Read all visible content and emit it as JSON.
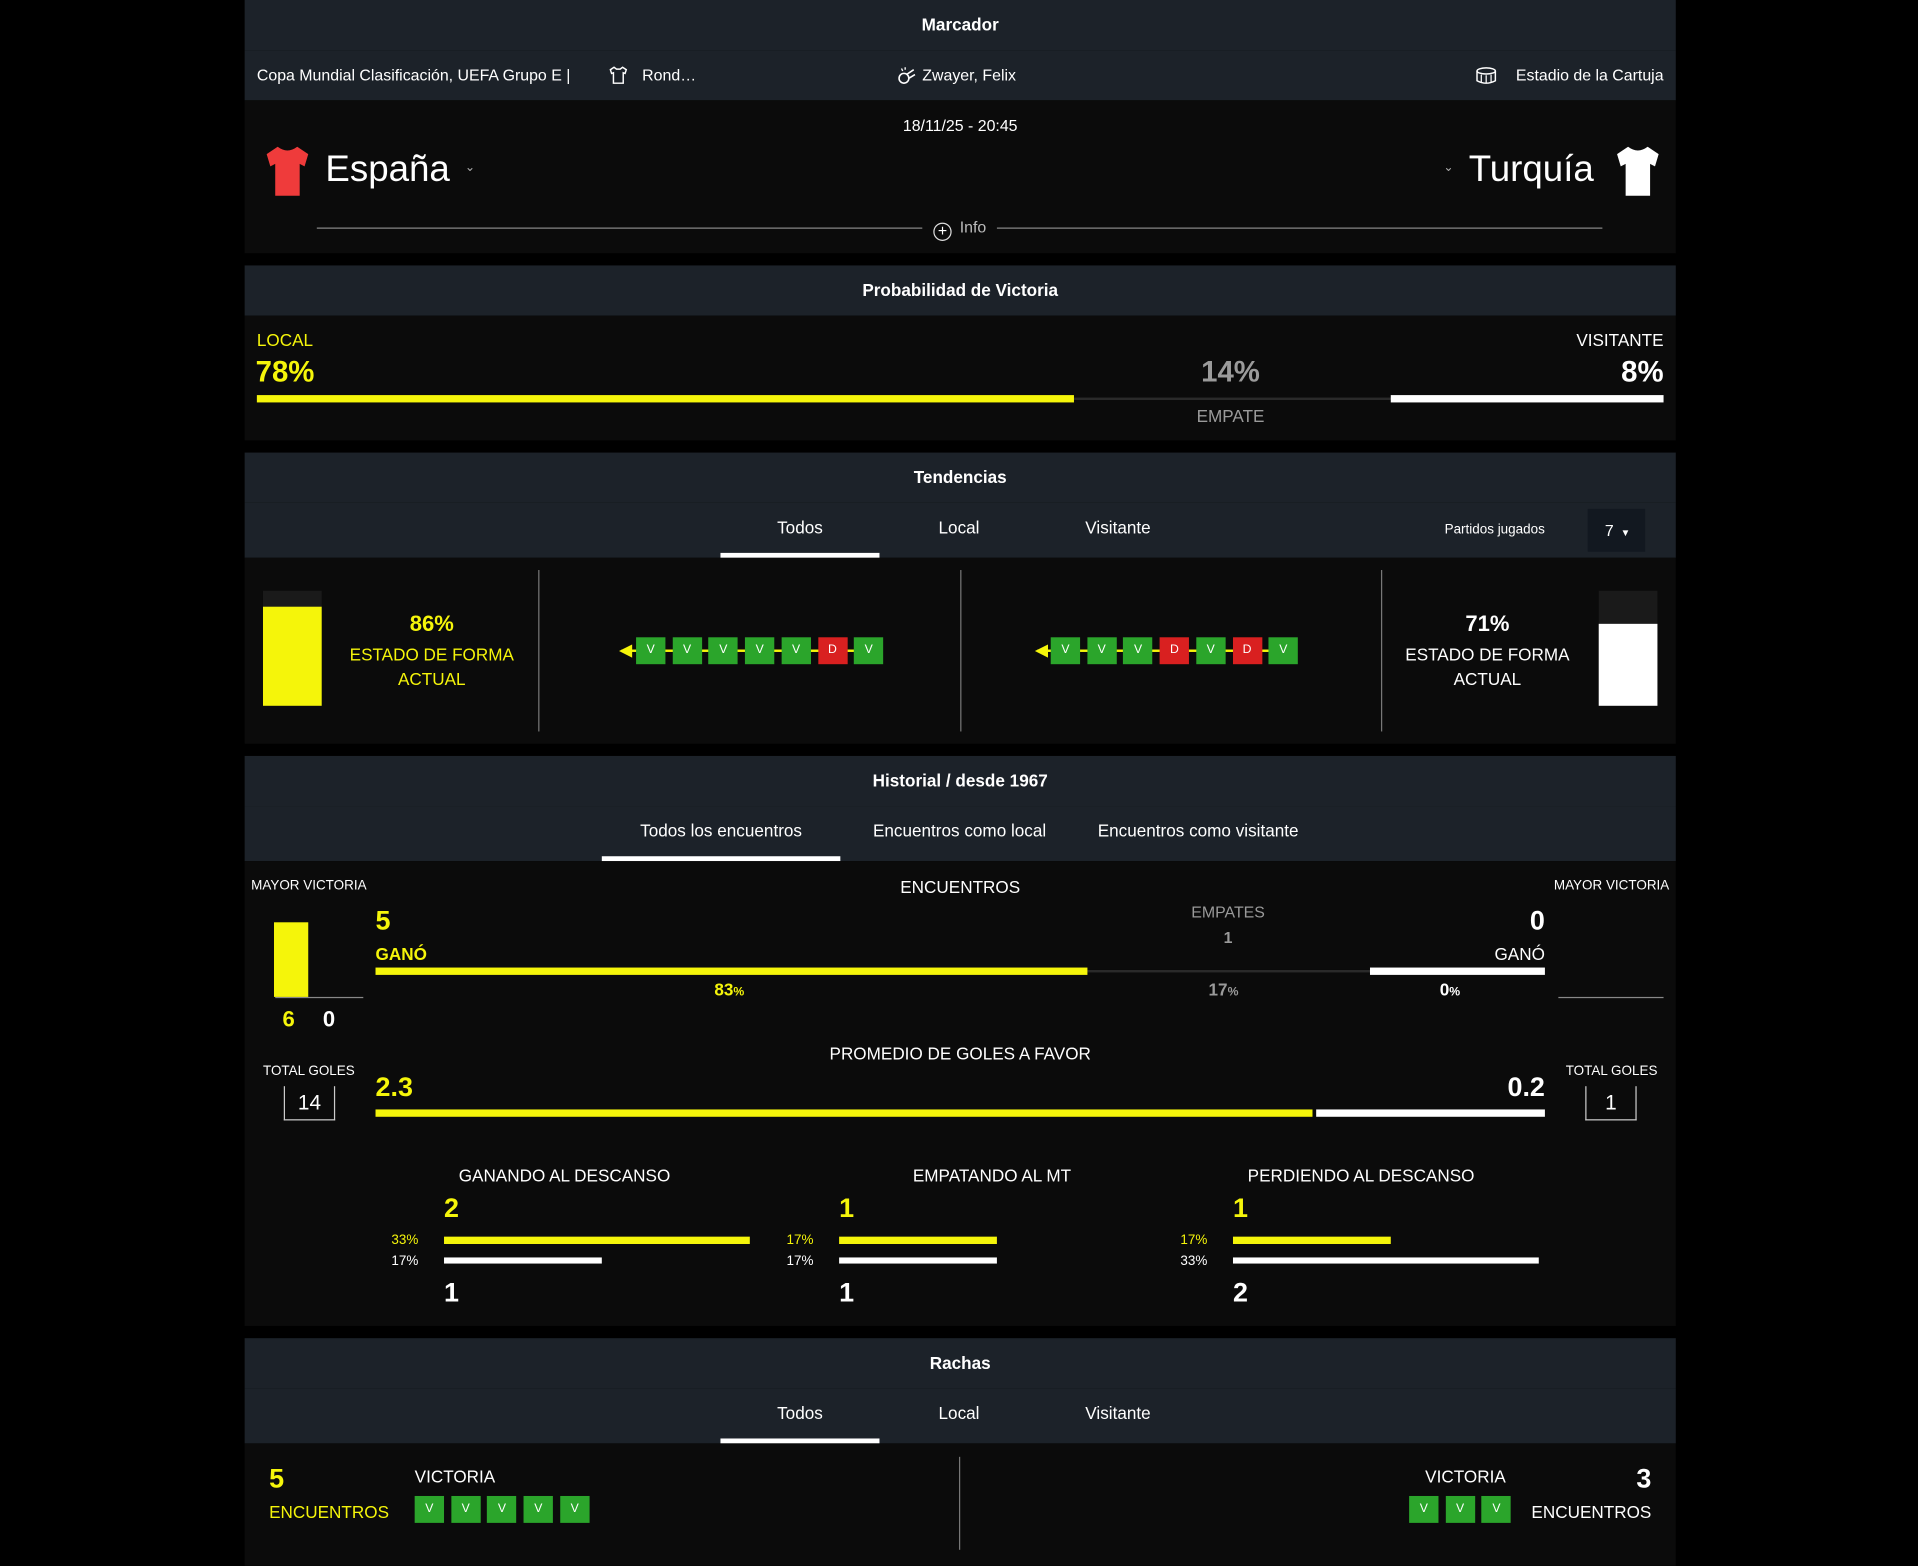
{
  "scoreboard": {
    "title": "Marcador",
    "competition": "Copa Mundial Clasificación, UEFA Grupo E |",
    "round": "Rond…",
    "referee": "Zwayer, Felix",
    "stadium": "Estadio de la Cartuja",
    "datetime": "18/11/25 - 20:45",
    "home_team": "España",
    "away_team": "Turquía",
    "home_shirt_color": "#ef3b3b",
    "away_shirt_color": "#ffffff",
    "info_label": "Info"
  },
  "win_probability": {
    "title": "Probabilidad de Victoria",
    "local_label": "LOCAL",
    "local_value": "78%",
    "local_fraction": 0.78,
    "draw_value": "14%",
    "draw_label": "EMPATE",
    "draw_fraction": 0.14,
    "visitor_label": "VISITANTE",
    "visitor_value": "8%",
    "visitor_fraction": 0.08
  },
  "trends": {
    "title": "Tendencias",
    "tabs": [
      "Todos",
      "Local",
      "Visitante"
    ],
    "active_tab": "Todos",
    "played_label": "Partidos jugados",
    "played_value": "7",
    "home": {
      "form_value": "86%",
      "form_fraction": 0.86,
      "form_label": "ESTADO DE FORMA ACTUAL",
      "results": [
        "V",
        "V",
        "V",
        "V",
        "V",
        "D",
        "V"
      ]
    },
    "away": {
      "form_value": "71%",
      "form_fraction": 0.71,
      "form_label": "ESTADO DE FORMA ACTUAL",
      "results": [
        "V",
        "V",
        "V",
        "D",
        "V",
        "D",
        "V"
      ]
    }
  },
  "history": {
    "title": "Historial / desde 1967",
    "tabs": [
      "Todos los encuentros",
      "Encuentros como local",
      "Encuentros como visitante"
    ],
    "active_tab": "Todos los encuentros",
    "encounters_label": "ENCUENTROS",
    "biggest_win_label_home": "MAYOR VICTORIA",
    "biggest_win_home": [
      "6",
      "0"
    ],
    "biggest_win_label_away": "MAYOR VICTORIA",
    "home_wins": "5",
    "home_won_label": "GANÓ",
    "draws_label": "EMPATES",
    "draws": "1",
    "away_wins": "0",
    "away_won_label": "GANÓ",
    "home_pct": "83",
    "draw_pct": "17",
    "away_pct": "0",
    "pct_sign": "%",
    "home_fraction": 0.83,
    "draw_fraction": 0.17,
    "away_fraction": 0.0,
    "avg_goals_label": "PROMEDIO DE GOLES A FAVOR",
    "home_avg_goals": "2.3",
    "away_avg_goals": "0.2",
    "total_goals_label_home": "TOTAL GOLES",
    "total_goals_home": "14",
    "total_goals_label_away": "TOTAL GOLES",
    "total_goals_away": "1",
    "halftime": [
      {
        "label": "GANANDO AL DESCANSO",
        "home_value": "2",
        "home_pct": "33%",
        "home_fraction": 0.33,
        "away_pct": "17%",
        "away_fraction": 0.17,
        "away_value": "1"
      },
      {
        "label": "EMPATANDO AL MT",
        "home_value": "1",
        "home_pct": "17%",
        "home_fraction": 0.17,
        "away_pct": "17%",
        "away_fraction": 0.17,
        "away_value": "1"
      },
      {
        "label": "PERDIENDO AL DESCANSO",
        "home_value": "1",
        "home_pct": "17%",
        "home_fraction": 0.17,
        "away_pct": "33%",
        "away_fraction": 0.33,
        "away_value": "2"
      }
    ]
  },
  "streaks": {
    "title": "Rachas",
    "tabs": [
      "Todos",
      "Local",
      "Visitante"
    ],
    "active_tab": "Todos",
    "home_count": "5",
    "home_count_label": "ENCUENTROS",
    "home_type": "VICTORIA",
    "home_results": [
      "V",
      "V",
      "V",
      "V",
      "V"
    ],
    "away_count": "3",
    "away_count_label": "ENCUENTROS",
    "away_type": "VICTORIA",
    "away_results": [
      "V",
      "V",
      "V"
    ]
  },
  "colors": {
    "accent_yellow": "#f5f50a",
    "win_green": "#2ba52b",
    "loss_red": "#d92020",
    "header_bg": "#1c2229",
    "panel_bg": "#0b0b0b"
  }
}
